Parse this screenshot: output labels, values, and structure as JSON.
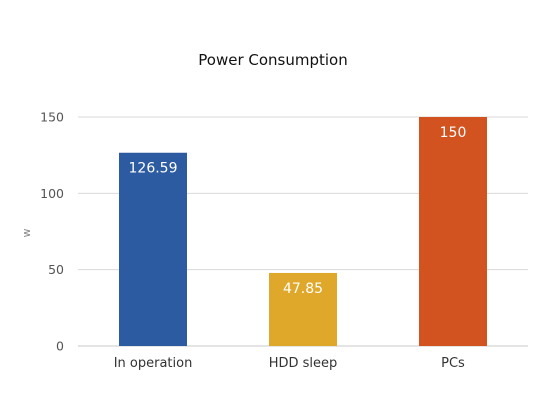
{
  "chart_data": {
    "type": "bar",
    "title": "Power Consumption",
    "xlabel": "",
    "ylabel": "w",
    "categories": [
      "In operation",
      "HDD sleep",
      "PCs"
    ],
    "values": [
      126.59,
      47.85,
      150
    ],
    "data_labels": [
      "126.59",
      "47.85",
      "150"
    ],
    "colors": [
      "#2d5ba1",
      "#e0a82a",
      "#d35320"
    ],
    "ylim": [
      0,
      150
    ],
    "yticks": [
      0,
      50,
      100,
      150
    ],
    "ytick_labels": [
      "0",
      "50",
      "100",
      "150"
    ],
    "grid": true,
    "legend": "none"
  }
}
